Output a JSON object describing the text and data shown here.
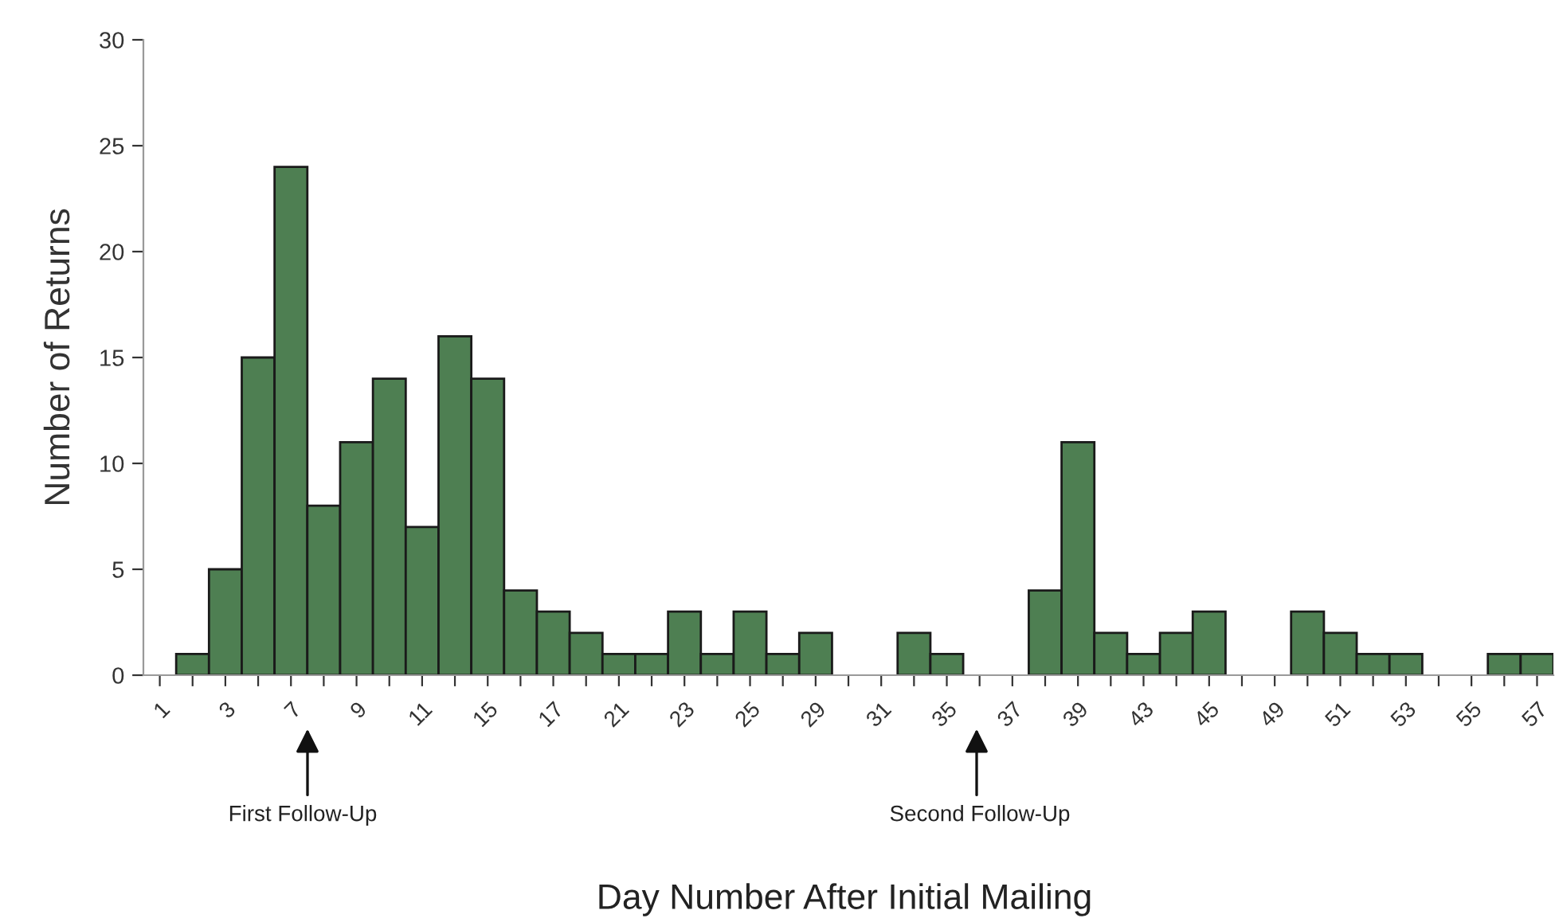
{
  "chart_data": {
    "type": "bar",
    "xlabel": "Day Number After Initial Mailing",
    "ylabel": "Number of Returns",
    "categories": [
      "1",
      null,
      "3",
      null,
      "7",
      null,
      "9",
      null,
      "11",
      null,
      "15",
      null,
      "17",
      null,
      "21",
      null,
      "23",
      null,
      "25",
      null,
      "29",
      null,
      "31",
      null,
      "35",
      null,
      "37",
      null,
      "39",
      null,
      "43",
      null,
      "45",
      null,
      "49",
      null,
      "51",
      null,
      "53",
      null,
      "55",
      null,
      "57"
    ],
    "values": [
      0,
      1,
      5,
      15,
      24,
      8,
      11,
      14,
      7,
      16,
      14,
      4,
      3,
      2,
      1,
      1,
      3,
      1,
      3,
      1,
      2,
      0,
      0,
      2,
      1,
      0,
      0,
      4,
      11,
      2,
      1,
      2,
      3,
      0,
      0,
      3,
      2,
      1,
      1,
      0,
      0,
      1,
      1
    ],
    "color": "#4e7f52",
    "ylim": [
      0,
      30
    ],
    "yticks": [
      0,
      5,
      10,
      15,
      20,
      25,
      30
    ],
    "grid": false,
    "annotations": [
      "First Follow-Up",
      "Second Follow-Up"
    ]
  }
}
